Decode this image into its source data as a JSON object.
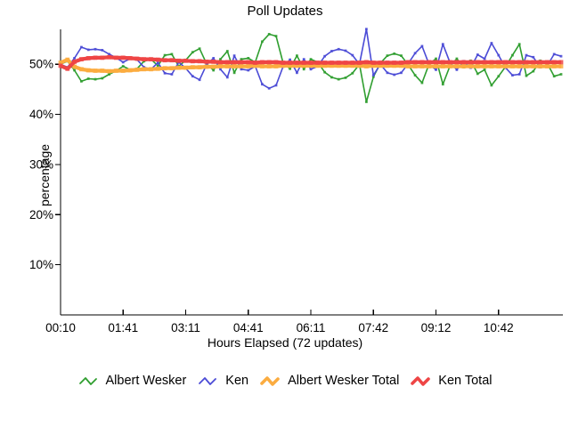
{
  "page": {
    "background": "#ffffff"
  },
  "chart_data": {
    "type": "line",
    "title": "Poll Updates",
    "xlabel": "Hours Elapsed (72 updates)",
    "ylabel": "percentage",
    "x_tick_labels": [
      "00:10",
      "01:41",
      "03:11",
      "04:41",
      "06:11",
      "07:42",
      "09:12",
      "10:42"
    ],
    "x_tick_indices": [
      0,
      9,
      18,
      27,
      36,
      45,
      54,
      63
    ],
    "y_ticks": [
      10,
      20,
      30,
      40,
      50
    ],
    "y_tick_suffix": "%",
    "ylim": [
      0,
      56.6
    ],
    "grid": false,
    "legend_position": "bottom",
    "axis_color": "#000000",
    "series": [
      {
        "name": "Albert Wesker",
        "color": "#2F9E2F",
        "line_width": 1.6,
        "marker_size": 2.8,
        "values": [
          50.0,
          50.6,
          48.8,
          46.6,
          47.1,
          47.0,
          47.2,
          48.0,
          48.7,
          49.6,
          48.9,
          49.1,
          50.6,
          51.0,
          49.7,
          51.8,
          52.0,
          49.6,
          50.8,
          52.4,
          53.1,
          50.1,
          48.8,
          51.0,
          52.6,
          48.3,
          51.0,
          51.2,
          50.4,
          54.5,
          56.0,
          55.6,
          50.3,
          49.1,
          51.7,
          49.0,
          51.0,
          50.4,
          48.4,
          47.4,
          47.0,
          47.3,
          48.2,
          50.0,
          42.5,
          47.5,
          50.2,
          51.7,
          52.1,
          51.7,
          49.9,
          47.8,
          46.3,
          50.0,
          51.1,
          46.0,
          49.6,
          51.1,
          49.4,
          50.7,
          48.1,
          48.9,
          45.8,
          47.6,
          49.5,
          51.8,
          54.0,
          47.7,
          48.6,
          50.7,
          50.2,
          47.6,
          48.0
        ]
      },
      {
        "name": "Ken",
        "color": "#4B4BD6",
        "line_width": 1.6,
        "marker_size": 2.8,
        "values": [
          50.0,
          49.4,
          51.2,
          53.4,
          52.9,
          53.0,
          52.8,
          52.0,
          51.3,
          50.4,
          51.1,
          50.9,
          49.4,
          49.0,
          50.3,
          48.2,
          48.0,
          50.4,
          49.2,
          47.6,
          46.9,
          49.9,
          51.2,
          49.0,
          47.4,
          51.7,
          49.0,
          48.8,
          49.6,
          46.0,
          45.2,
          45.8,
          49.5,
          50.9,
          48.3,
          51.0,
          49.0,
          49.6,
          51.6,
          52.6,
          53.0,
          52.7,
          51.8,
          50.0,
          57.0,
          47.8,
          50.0,
          48.3,
          47.9,
          48.3,
          50.1,
          52.2,
          53.6,
          50.0,
          48.9,
          54.0,
          50.4,
          48.9,
          50.6,
          49.3,
          51.9,
          51.1,
          54.2,
          51.8,
          49.3,
          47.8,
          48.0,
          51.8,
          51.4,
          49.4,
          49.7,
          52.0,
          51.6
        ]
      },
      {
        "name": "Albert Wesker Total",
        "color": "#FBAC40",
        "line_width": 4.2,
        "marker_size": 4.8,
        "values": [
          50.3,
          50.9,
          49.5,
          49.0,
          48.8,
          48.7,
          48.7,
          48.6,
          48.7,
          48.7,
          48.8,
          48.9,
          49.0,
          49.0,
          49.1,
          49.2,
          49.2,
          49.3,
          49.3,
          49.4,
          49.4,
          49.5,
          49.5,
          49.6,
          49.6,
          49.6,
          49.6,
          49.6,
          49.7,
          49.6,
          49.6,
          49.6,
          49.7,
          49.7,
          49.7,
          49.7,
          49.7,
          49.7,
          49.7,
          49.7,
          49.7,
          49.7,
          49.7,
          49.7,
          49.6,
          49.7,
          49.7,
          49.7,
          49.7,
          49.7,
          49.6,
          49.6,
          49.6,
          49.6,
          49.6,
          49.6,
          49.6,
          49.6,
          49.6,
          49.6,
          49.6,
          49.6,
          49.6,
          49.6,
          49.6,
          49.6,
          49.6,
          49.6,
          49.6,
          49.6,
          49.6,
          49.6,
          49.6
        ]
      },
      {
        "name": "Ken Total",
        "color": "#EE4545",
        "line_width": 4.2,
        "marker_size": 4.8,
        "values": [
          49.7,
          49.1,
          50.5,
          51.0,
          51.2,
          51.3,
          51.3,
          51.4,
          51.3,
          51.3,
          51.2,
          51.1,
          51.0,
          51.0,
          50.9,
          50.8,
          50.8,
          50.7,
          50.7,
          50.6,
          50.6,
          50.5,
          50.5,
          50.4,
          50.4,
          50.4,
          50.4,
          50.4,
          50.3,
          50.4,
          50.4,
          50.4,
          50.3,
          50.3,
          50.3,
          50.3,
          50.3,
          50.3,
          50.3,
          50.3,
          50.3,
          50.3,
          50.3,
          50.3,
          50.4,
          50.3,
          50.3,
          50.3,
          50.3,
          50.3,
          50.4,
          50.4,
          50.4,
          50.4,
          50.4,
          50.4,
          50.4,
          50.4,
          50.4,
          50.4,
          50.4,
          50.4,
          50.4,
          50.4,
          50.4,
          50.4,
          50.4,
          50.4,
          50.4,
          50.4,
          50.4,
          50.4,
          50.4
        ]
      }
    ]
  }
}
